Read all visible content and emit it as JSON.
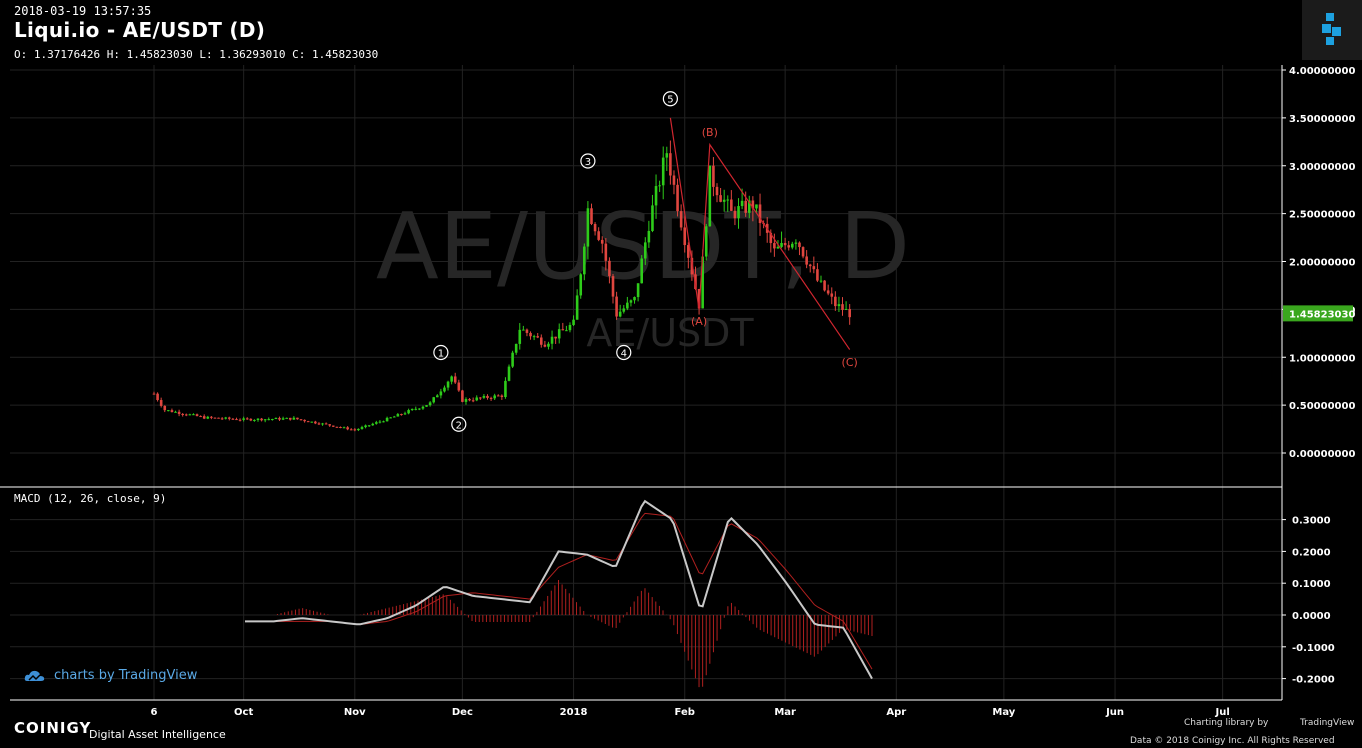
{
  "header": {
    "timestamp": "2018-03-19 13:57:35",
    "title": "Liqui.io - AE/USDT (D)",
    "ohlc": "O: 1.37176426 H: 1.45823030 L: 1.36293010 C: 1.45823030",
    "watermark_main": "AE/USDT, D",
    "watermark_sub": "AE/USDT"
  },
  "macd_panel": {
    "label": "MACD (12, 26, close, 9)"
  },
  "branding": {
    "tv_badge": "charts by TradingView",
    "brand": "COINIGY",
    "brand_sub": "Digital Asset Intelligence",
    "charting_lib": "Charting library by",
    "tv_mini": "TradingView",
    "copyright": "Data © 2018   Coinigy Inc. All Rights Reserved"
  },
  "colors": {
    "up": "#2ecc1a",
    "down": "#e0463f",
    "wave_line": "#d0262f",
    "macd_line": "#c8c8c8",
    "signal_line": "#b0201f",
    "histogram": "#b0201f",
    "price_tag": "#3aa71e",
    "accent": "#1da1e0"
  },
  "chart_data": [
    {
      "type": "candlestick",
      "title": "Liqui.io - AE/USDT (D)",
      "x_ticks": [
        "6",
        "Oct",
        "Nov",
        "Dec",
        "2018",
        "Feb",
        "Mar",
        "Apr",
        "May",
        "Jun",
        "Jul"
      ],
      "y_ticks": [
        "4.00000000",
        "3.50000000",
        "3.00000000",
        "2.50000000",
        "2.00000000",
        "1.50000000",
        "1.00000000",
        "0.50000000",
        "0.00000000"
      ],
      "ylim": [
        0,
        4
      ],
      "last_price": "1.45823030",
      "approx_close_path": [
        {
          "x": "Sep 6",
          "y": 0.62
        },
        {
          "x": "Sep 9",
          "y": 0.45
        },
        {
          "x": "Sep 20",
          "y": 0.37
        },
        {
          "x": "Oct 1",
          "y": 0.35
        },
        {
          "x": "Oct 15",
          "y": 0.36
        },
        {
          "x": "Nov 1",
          "y": 0.24
        },
        {
          "x": "Nov 12",
          "y": 0.38
        },
        {
          "x": "Nov 22",
          "y": 0.52
        },
        {
          "x": "Nov 28",
          "y": 0.8
        },
        {
          "x": "Dec 1",
          "y": 0.55
        },
        {
          "x": "Dec 12",
          "y": 0.6
        },
        {
          "x": "Dec 17",
          "y": 1.3
        },
        {
          "x": "Dec 24",
          "y": 1.15
        },
        {
          "x": "Jan 1",
          "y": 1.35
        },
        {
          "x": "Jan 3",
          "y": 1.9
        },
        {
          "x": "Jan 5",
          "y": 2.55
        },
        {
          "x": "Jan 9",
          "y": 2.2
        },
        {
          "x": "Jan 13",
          "y": 1.45
        },
        {
          "x": "Jan 18",
          "y": 1.6
        },
        {
          "x": "Jan 22",
          "y": 2.4
        },
        {
          "x": "Jan 27",
          "y": 3.15
        },
        {
          "x": "Jan 30",
          "y": 2.6
        },
        {
          "x": "Feb 5",
          "y": 1.55
        },
        {
          "x": "Feb 8",
          "y": 2.9
        },
        {
          "x": "Feb 14",
          "y": 2.5
        },
        {
          "x": "Feb 20",
          "y": 2.6
        },
        {
          "x": "Feb 26",
          "y": 2.1
        },
        {
          "x": "Mar 4",
          "y": 2.25
        },
        {
          "x": "Mar 10",
          "y": 1.8
        },
        {
          "x": "Mar 15",
          "y": 1.55
        },
        {
          "x": "Mar 19",
          "y": 1.46
        }
      ],
      "wave_labels": [
        {
          "label": "1",
          "x": "Nov 25",
          "y": 1.05
        },
        {
          "label": "2",
          "x": "Nov 30",
          "y": 0.3
        },
        {
          "label": "3",
          "x": "Jan 5",
          "y": 3.05
        },
        {
          "label": "4",
          "x": "Jan 15",
          "y": 1.05
        },
        {
          "label": "5",
          "x": "Jan 28",
          "y": 3.7
        },
        {
          "label": "(A)",
          "x": "Feb 5",
          "y": 1.38
        },
        {
          "label": "(B)",
          "x": "Feb 8",
          "y": 3.35
        },
        {
          "label": "(C)",
          "x": "Mar 19",
          "y": 0.95
        }
      ]
    },
    {
      "type": "line",
      "title": "MACD (12, 26, close, 9)",
      "y_ticks": [
        "0.3000",
        "0.2000",
        "0.1000",
        "0.0000",
        "-0.1000",
        "-0.2000"
      ],
      "ylim": [
        -0.24,
        0.38
      ],
      "series": [
        {
          "name": "MACD",
          "approx": [
            -0.02,
            -0.02,
            -0.01,
            -0.02,
            -0.03,
            -0.01,
            0.03,
            0.09,
            0.06,
            0.05,
            0.04,
            0.2,
            0.19,
            0.15,
            0.36,
            0.3,
            0.01,
            0.31,
            0.22,
            0.1,
            -0.03,
            -0.04,
            -0.2
          ]
        },
        {
          "name": "Signal",
          "approx": [
            -0.02,
            -0.02,
            -0.02,
            -0.02,
            -0.03,
            -0.02,
            0.01,
            0.06,
            0.07,
            0.06,
            0.05,
            0.15,
            0.19,
            0.17,
            0.32,
            0.31,
            0.12,
            0.29,
            0.24,
            0.14,
            0.03,
            -0.02,
            -0.17
          ]
        }
      ]
    }
  ]
}
